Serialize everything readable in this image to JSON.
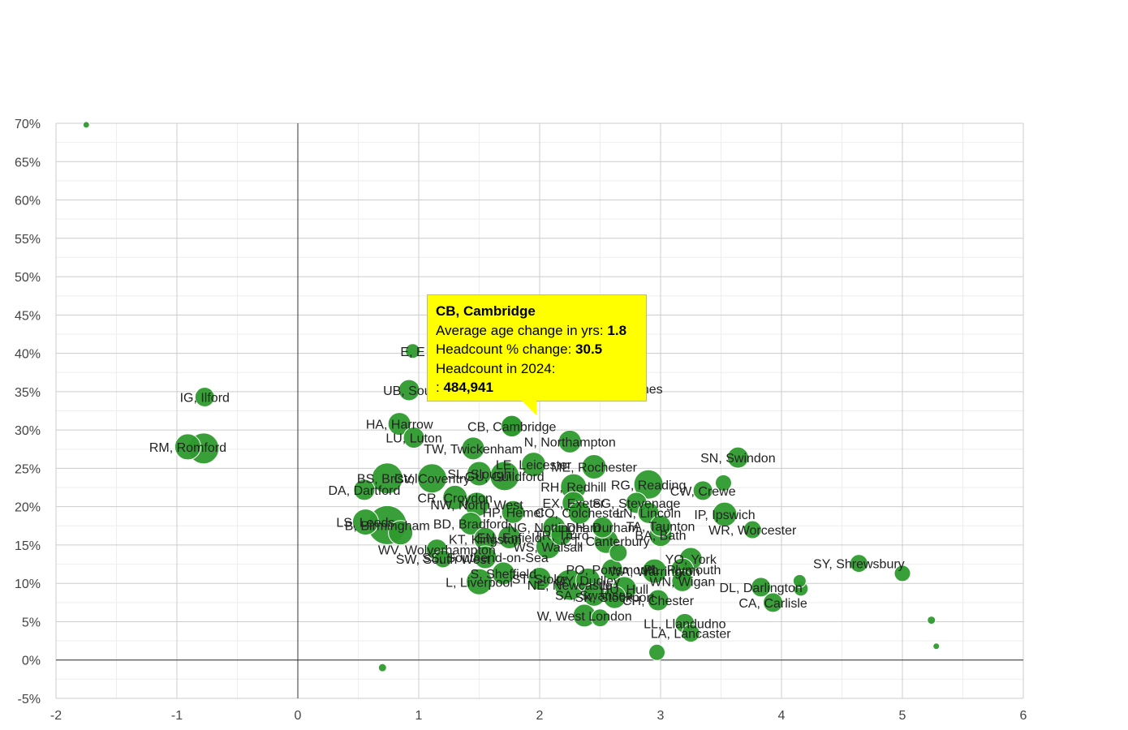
{
  "chart_data": {
    "type": "scatter",
    "title": "",
    "xlabel": "",
    "ylabel": "",
    "xlim": [
      -2,
      6
    ],
    "ylim": [
      -5,
      70
    ],
    "x_ticks": [
      "-2",
      "-1",
      "0",
      "1",
      "2",
      "3",
      "4",
      "5",
      "6"
    ],
    "y_ticks": [
      "-5%",
      "0%",
      "5%",
      "10%",
      "15%",
      "20%",
      "25%",
      "30%",
      "35%",
      "40%",
      "45%",
      "50%",
      "55%",
      "60%",
      "65%",
      "70%"
    ],
    "grid": true,
    "colors": {
      "bubble": "#2e9b2e",
      "bubble_stroke": "#ffffff",
      "tooltip_bg": "#ffff00"
    },
    "points": [
      {
        "label": "",
        "x": -1.75,
        "y": 69.8,
        "r": 4
      },
      {
        "label": "IG, Ilford",
        "x": -0.77,
        "y": 34.3,
        "r": 12
      },
      {
        "label": "RM, Romford",
        "x": -0.91,
        "y": 27.8,
        "r": 16
      },
      {
        "label": "",
        "x": -0.78,
        "y": 27.6,
        "r": 19
      },
      {
        "label": "E, E",
        "x": 0.95,
        "y": 40.3,
        "r": 9
      },
      {
        "label": "UB, Sout",
        "x": 0.92,
        "y": 35.2,
        "r": 13
      },
      {
        "label": "HA, Harrow",
        "x": 0.84,
        "y": 30.8,
        "r": 14
      },
      {
        "label": "LU, Luton",
        "x": 0.96,
        "y": 29.0,
        "r": 13
      },
      {
        "label": "CB, Cambridge",
        "x": 1.77,
        "y": 30.5,
        "r": 14
      },
      {
        "label": "TW, Twickenham",
        "x": 1.45,
        "y": 27.6,
        "r": 14
      },
      {
        "label": "N, Northampton",
        "x": 2.25,
        "y": 28.5,
        "r": 14
      },
      {
        "label": "SN, Swindon",
        "x": 3.64,
        "y": 26.4,
        "r": 13
      },
      {
        "label": "LE, Leicester",
        "x": 1.95,
        "y": 25.5,
        "r": 15
      },
      {
        "label": "ME, Rochester",
        "x": 2.45,
        "y": 25.2,
        "r": 15
      },
      {
        "label": "BS, Bristol",
        "x": 0.74,
        "y": 23.7,
        "r": 19
      },
      {
        "label": "CV, Coventry",
        "x": 1.11,
        "y": 23.7,
        "r": 18
      },
      {
        "label": "SL, Slough",
        "x": 1.5,
        "y": 24.3,
        "r": 15
      },
      {
        "label": "GU, Guildford",
        "x": 1.71,
        "y": 24.0,
        "r": 18
      },
      {
        "label": "RH, Redhill",
        "x": 2.28,
        "y": 22.6,
        "r": 16
      },
      {
        "label": "RG, Reading",
        "x": 2.9,
        "y": 22.9,
        "r": 18
      },
      {
        "label": "CW, Crewe",
        "x": 3.35,
        "y": 22.1,
        "r": 12
      },
      {
        "label": "",
        "x": 3.52,
        "y": 23.1,
        "r": 10
      },
      {
        "label": "DA, Dartford",
        "x": 0.55,
        "y": 22.2,
        "r": 13
      },
      {
        "label": "CR, Croydon",
        "x": 1.3,
        "y": 21.2,
        "r": 15
      },
      {
        "label": "EX, Exeter",
        "x": 2.28,
        "y": 20.5,
        "r": 14
      },
      {
        "label": "SG, Stevenage",
        "x": 2.8,
        "y": 20.5,
        "r": 13
      },
      {
        "label": "NW, North West",
        "x": 1.48,
        "y": 20.3,
        "r": 15
      },
      {
        "label": "HP, Hemel",
        "x": 1.78,
        "y": 19.3,
        "r": 14
      },
      {
        "label": "CO, Colchester",
        "x": 2.33,
        "y": 19.2,
        "r": 14
      },
      {
        "label": "LN, Lincoln",
        "x": 2.9,
        "y": 19.2,
        "r": 13
      },
      {
        "label": "IP, Ipswich",
        "x": 3.53,
        "y": 19.0,
        "r": 15
      },
      {
        "label": "BD, Bradford",
        "x": 1.43,
        "y": 17.8,
        "r": 14
      },
      {
        "label": "NG, Nottingham",
        "x": 2.12,
        "y": 17.3,
        "r": 14
      },
      {
        "label": "DH, Durham",
        "x": 2.52,
        "y": 17.3,
        "r": 13
      },
      {
        "label": "TA, Taunton",
        "x": 3.0,
        "y": 17.5,
        "r": 13
      },
      {
        "label": "LS, Leeds",
        "x": 0.56,
        "y": 18.0,
        "r": 16
      },
      {
        "label": "B, Birmingham",
        "x": 0.74,
        "y": 17.6,
        "r": 24
      },
      {
        "label": "",
        "x": 0.85,
        "y": 16.6,
        "r": 15
      },
      {
        "label": "WR, Worcester",
        "x": 3.76,
        "y": 17.0,
        "r": 11
      },
      {
        "label": "TR, Truro",
        "x": 2.18,
        "y": 16.3,
        "r": 13
      },
      {
        "label": "BA, Bath",
        "x": 3.0,
        "y": 16.3,
        "r": 14
      },
      {
        "label": "KT, Kingston",
        "x": 1.55,
        "y": 15.8,
        "r": 14
      },
      {
        "label": "EN, Enfield",
        "x": 1.75,
        "y": 16.0,
        "r": 14
      },
      {
        "label": "CT, Canterbury",
        "x": 2.55,
        "y": 15.5,
        "r": 15
      },
      {
        "label": "WV, Wolverhampton",
        "x": 1.15,
        "y": 14.4,
        "r": 13
      },
      {
        "label": "WS, Walsall",
        "x": 2.07,
        "y": 14.8,
        "r": 15
      },
      {
        "label": "SS, Southend-on-Sea",
        "x": 1.55,
        "y": 13.4,
        "r": 14
      },
      {
        "label": "SW, South West",
        "x": 1.2,
        "y": 13.2,
        "r": 11
      },
      {
        "label": "",
        "x": 2.65,
        "y": 14.0,
        "r": 11
      },
      {
        "label": "YO, York",
        "x": 3.25,
        "y": 13.2,
        "r": 14
      },
      {
        "label": "PO, Portsmouth",
        "x": 2.6,
        "y": 11.8,
        "r": 13
      },
      {
        "label": "WA, Warrington",
        "x": 2.95,
        "y": 11.6,
        "r": 15
      },
      {
        "label": "PL, Plymouth",
        "x": 3.18,
        "y": 11.8,
        "r": 14
      },
      {
        "label": "SY, Shrewsbury",
        "x": 4.64,
        "y": 12.6,
        "r": 11
      },
      {
        "label": "",
        "x": 5.0,
        "y": 11.3,
        "r": 10
      },
      {
        "label": "S, Sheffield",
        "x": 1.7,
        "y": 11.3,
        "r": 14
      },
      {
        "label": "L, Liverpool",
        "x": 1.5,
        "y": 10.2,
        "r": 16
      },
      {
        "label": "ST, Stoke",
        "x": 2.0,
        "y": 10.6,
        "r": 14
      },
      {
        "label": "DY, Dudley",
        "x": 2.4,
        "y": 10.4,
        "r": 15
      },
      {
        "label": "WN, Wigan",
        "x": 3.18,
        "y": 10.3,
        "r": 13
      },
      {
        "label": "DL, Darlington",
        "x": 3.83,
        "y": 9.5,
        "r": 12
      },
      {
        "label": "",
        "x": 4.15,
        "y": 10.3,
        "r": 8
      },
      {
        "label": "",
        "x": 4.16,
        "y": 9.3,
        "r": 9
      },
      {
        "label": "NE, Newcastle",
        "x": 2.25,
        "y": 9.8,
        "r": 19
      },
      {
        "label": "HU, Hull",
        "x": 2.7,
        "y": 9.3,
        "r": 15
      },
      {
        "label": "SA, Swansea",
        "x": 2.45,
        "y": 8.5,
        "r": 14
      },
      {
        "label": "SK, Stockport",
        "x": 2.62,
        "y": 8.2,
        "r": 14
      },
      {
        "label": "CH, Chester",
        "x": 2.98,
        "y": 7.8,
        "r": 13
      },
      {
        "label": "CA, Carlisle",
        "x": 3.93,
        "y": 7.5,
        "r": 12
      },
      {
        "label": "W, West London",
        "x": 2.37,
        "y": 5.8,
        "r": 14
      },
      {
        "label": "",
        "x": 2.5,
        "y": 5.5,
        "r": 11
      },
      {
        "label": "LL, Llandudno",
        "x": 3.2,
        "y": 4.8,
        "r": 12
      },
      {
        "label": "LA, Lancaster",
        "x": 3.25,
        "y": 3.5,
        "r": 11
      },
      {
        "label": "",
        "x": 5.24,
        "y": 5.2,
        "r": 5
      },
      {
        "label": "",
        "x": 5.28,
        "y": 1.8,
        "r": 4
      },
      {
        "label": "",
        "x": 2.97,
        "y": 1.0,
        "r": 10
      },
      {
        "label": "",
        "x": 0.7,
        "y": -1.0,
        "r": 5
      },
      {
        "label": "MK, Milton Keynes",
        "x": 2.57,
        "y": 35.4,
        "r": 10
      }
    ],
    "tooltip": {
      "title": "CB, Cambridge",
      "rows": [
        {
          "label": "Average age change in yrs:",
          "value": "1.8"
        },
        {
          "label": "Headcount % change:",
          "value": "30.5"
        },
        {
          "label": "Headcount in 2024:",
          "value": ""
        },
        {
          "label": ":",
          "value": "484,941"
        }
      ]
    }
  }
}
